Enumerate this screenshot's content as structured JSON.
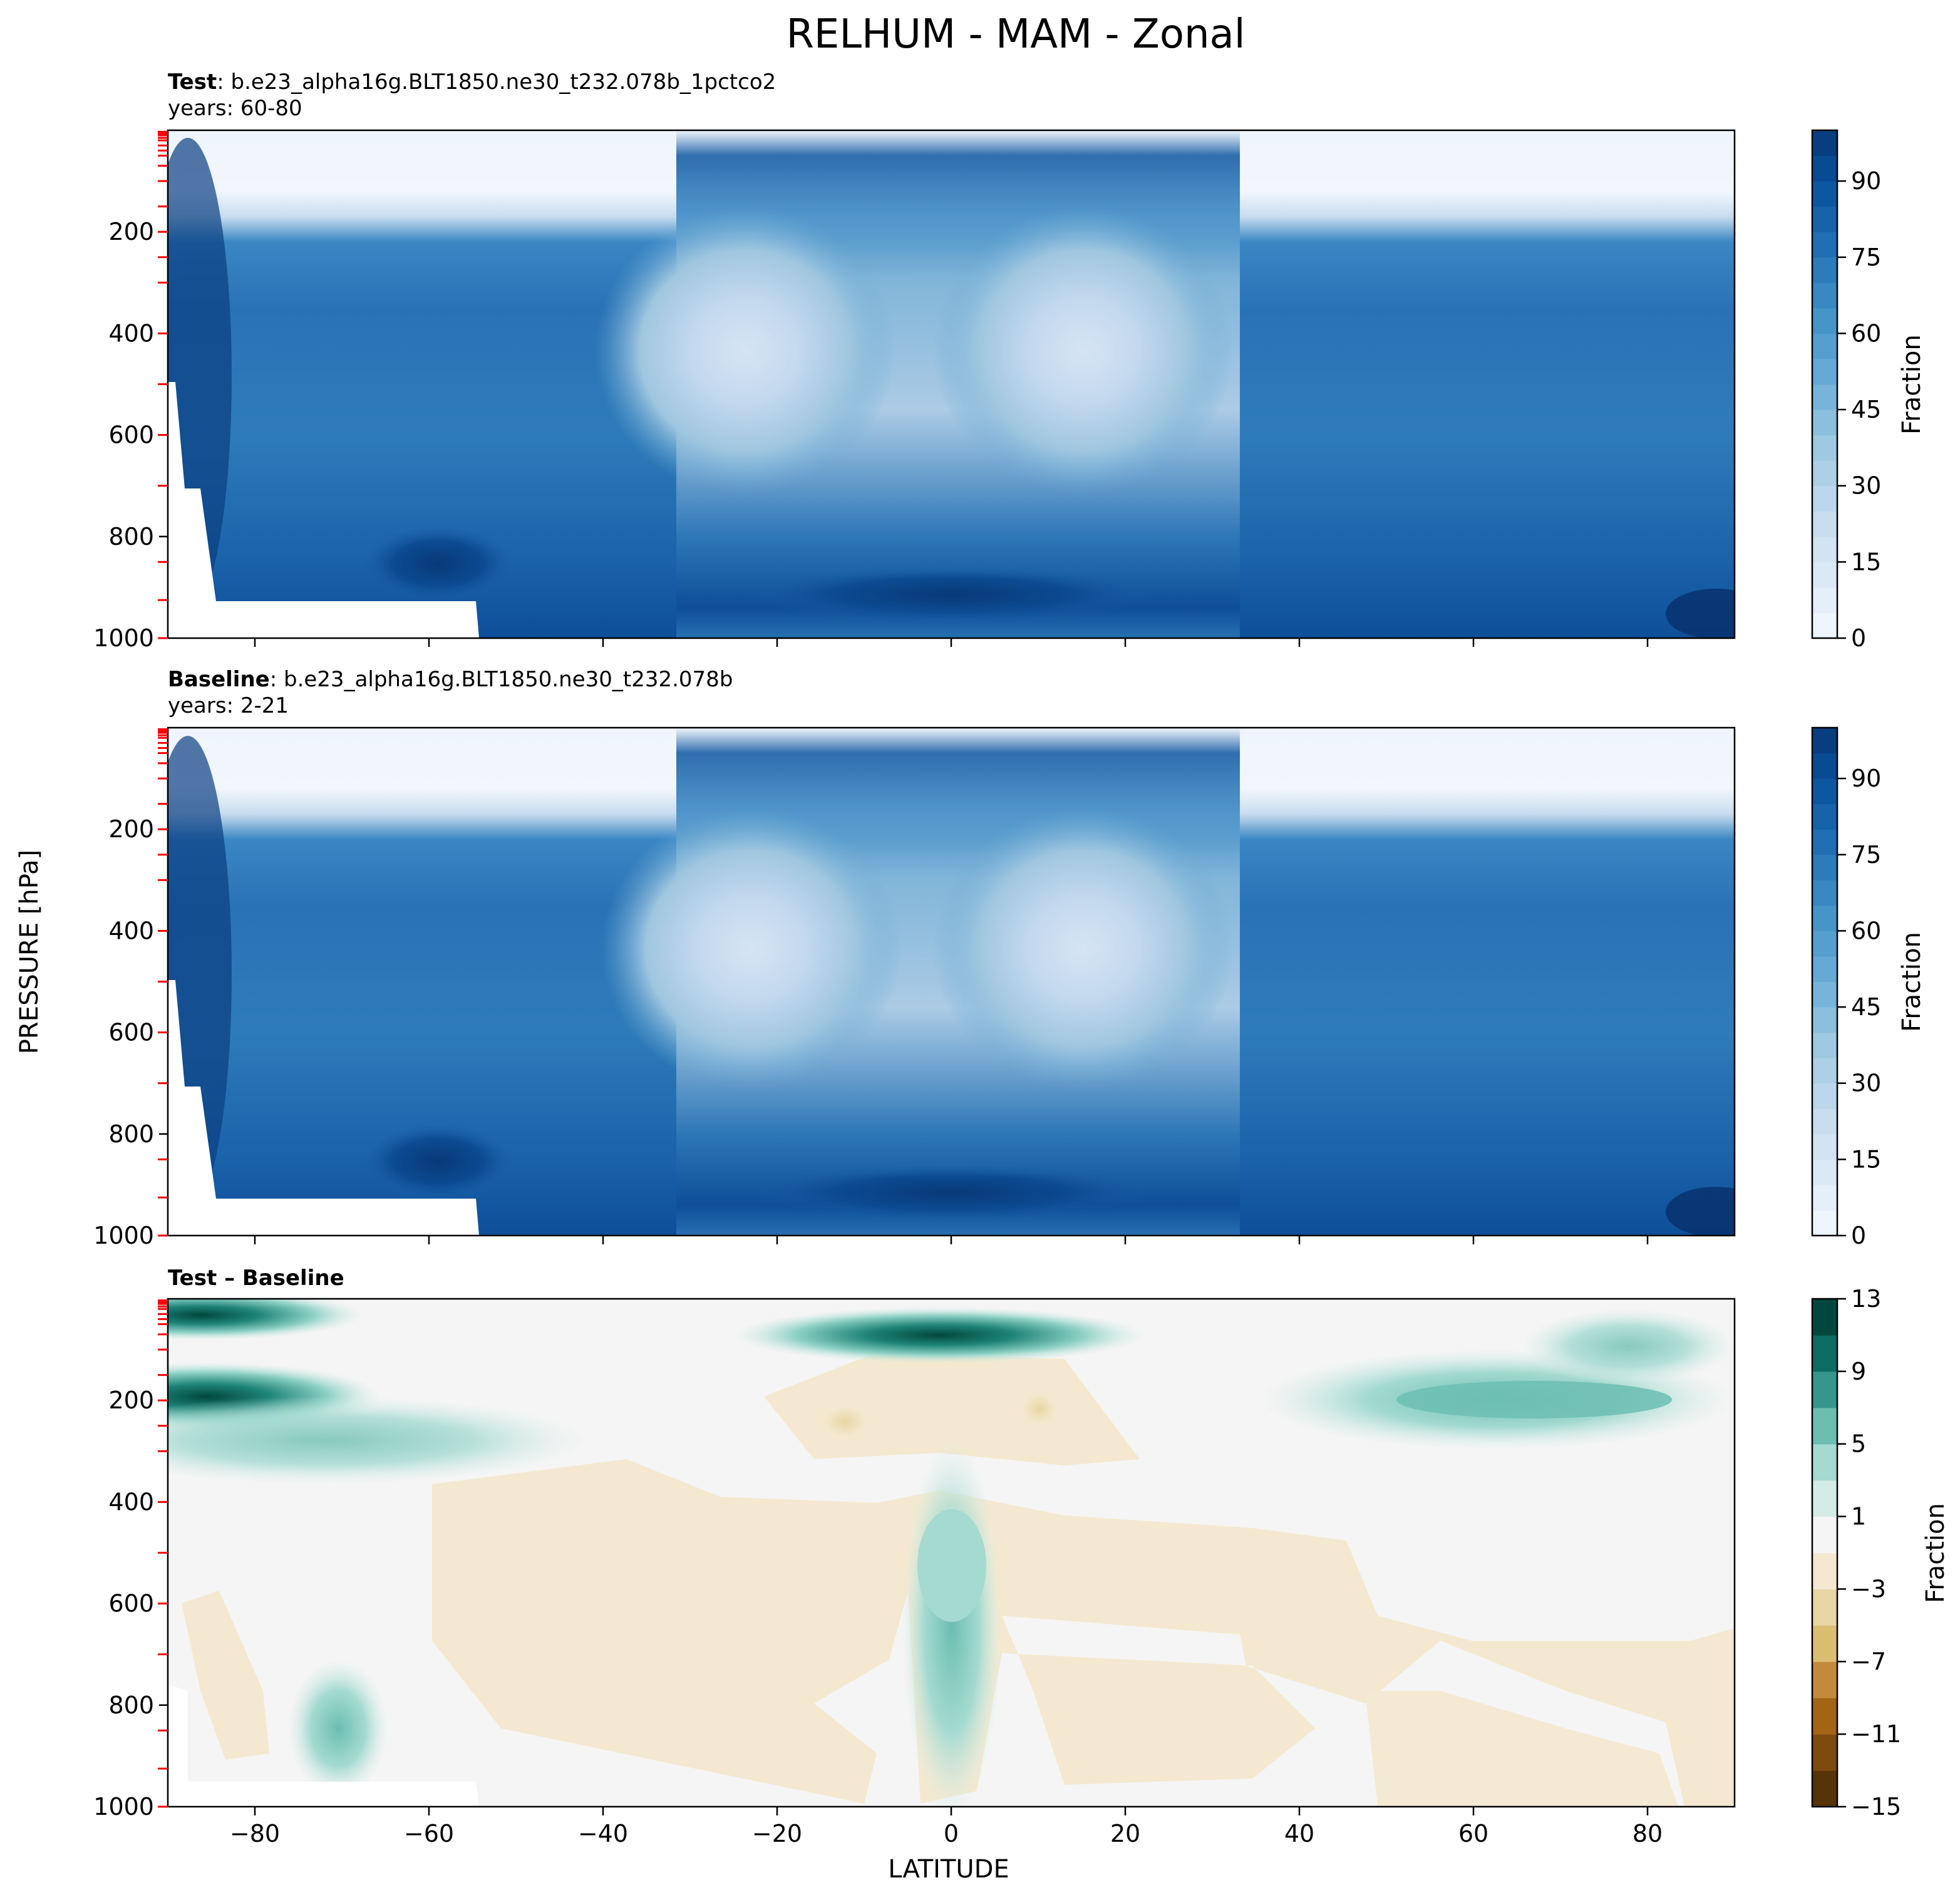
{
  "figure": {
    "title": "RELHUM - MAM - Zonal",
    "ylabel": "PRESSURE [hPa]",
    "xlabel": "LATITUDE"
  },
  "chart_data": [
    {
      "type": "heatmap",
      "id": "test",
      "title_bold": "Test",
      "title_rest": ": b.e23_alpha16g.BLT1850.ne30_t232.078b_1pctco2",
      "subtitle": "years: 60-80",
      "x_ticks": [
        -80,
        -60,
        -40,
        -20,
        0,
        20,
        40,
        60,
        80
      ],
      "x_tick_labels": [],
      "xlim": [
        -90,
        90
      ],
      "y_ticks": [
        200,
        400,
        600,
        800,
        1000
      ],
      "y_tick_labels": [
        "200",
        "400",
        "600",
        "800",
        "1000"
      ],
      "ylim": [
        1000,
        0
      ],
      "colormap": "Blues",
      "colorbar_label": "Fraction",
      "colorbar_ticks": [
        0,
        15,
        30,
        45,
        60,
        75,
        90
      ],
      "colorbar_tick_labels": [
        "0",
        "15",
        "30",
        "45",
        "60",
        "75",
        "90"
      ],
      "colorbar_range": [
        0,
        100
      ],
      "colorbar_levels": 20
    },
    {
      "type": "heatmap",
      "id": "baseline",
      "title_bold": "Baseline",
      "title_rest": ": b.e23_alpha16g.BLT1850.ne30_t232.078b",
      "subtitle": "years: 2-21",
      "x_ticks": [
        -80,
        -60,
        -40,
        -20,
        0,
        20,
        40,
        60,
        80
      ],
      "x_tick_labels": [],
      "xlim": [
        -90,
        90
      ],
      "y_ticks": [
        200,
        400,
        600,
        800,
        1000
      ],
      "y_tick_labels": [
        "200",
        "400",
        "600",
        "800",
        "1000"
      ],
      "ylim": [
        1000,
        0
      ],
      "colormap": "Blues",
      "colorbar_label": "Fraction",
      "colorbar_ticks": [
        0,
        15,
        30,
        45,
        60,
        75,
        90
      ],
      "colorbar_tick_labels": [
        "0",
        "15",
        "30",
        "45",
        "60",
        "75",
        "90"
      ],
      "colorbar_range": [
        0,
        100
      ],
      "colorbar_levels": 20
    },
    {
      "type": "heatmap",
      "id": "difference",
      "title_bold": "Test – Baseline",
      "title_rest": "",
      "subtitle": "",
      "x_ticks": [
        -80,
        -60,
        -40,
        -20,
        0,
        20,
        40,
        60,
        80
      ],
      "x_tick_labels": [
        "−80",
        "−60",
        "−40",
        "−20",
        "0",
        "20",
        "40",
        "60",
        "80"
      ],
      "xlim": [
        -90,
        90
      ],
      "y_ticks": [
        200,
        400,
        600,
        800,
        1000
      ],
      "y_tick_labels": [
        "200",
        "400",
        "600",
        "800",
        "1000"
      ],
      "ylim": [
        1000,
        0
      ],
      "colormap": "BrBG",
      "colorbar_label": "Fraction",
      "colorbar_ticks": [
        -15,
        -11,
        -7,
        -3,
        1,
        5,
        9,
        13
      ],
      "colorbar_tick_labels": [
        "−15",
        "−11",
        "−7",
        "−3",
        "1",
        "5",
        "9",
        "13"
      ],
      "colorbar_range": [
        -15,
        13
      ],
      "colorbar_levels": 14,
      "colorbar_colors": [
        "#573308",
        "#7d4b0e",
        "#a46415",
        "#c28a3a",
        "#dbbd72",
        "#ead6a4",
        "#f4e9d0",
        "#f5f5f5",
        "#d4ece7",
        "#a4dad0",
        "#6cbeb1",
        "#36958c",
        "#0b6c63",
        "#01473d"
      ]
    }
  ],
  "colors": {
    "blues_ramp": [
      "#f7fbff",
      "#deebf7",
      "#c6dbef",
      "#9ecae1",
      "#6baed6",
      "#4292c6",
      "#2171b5",
      "#08519c",
      "#08306b"
    ],
    "pressure_marker": "#ff0000"
  }
}
